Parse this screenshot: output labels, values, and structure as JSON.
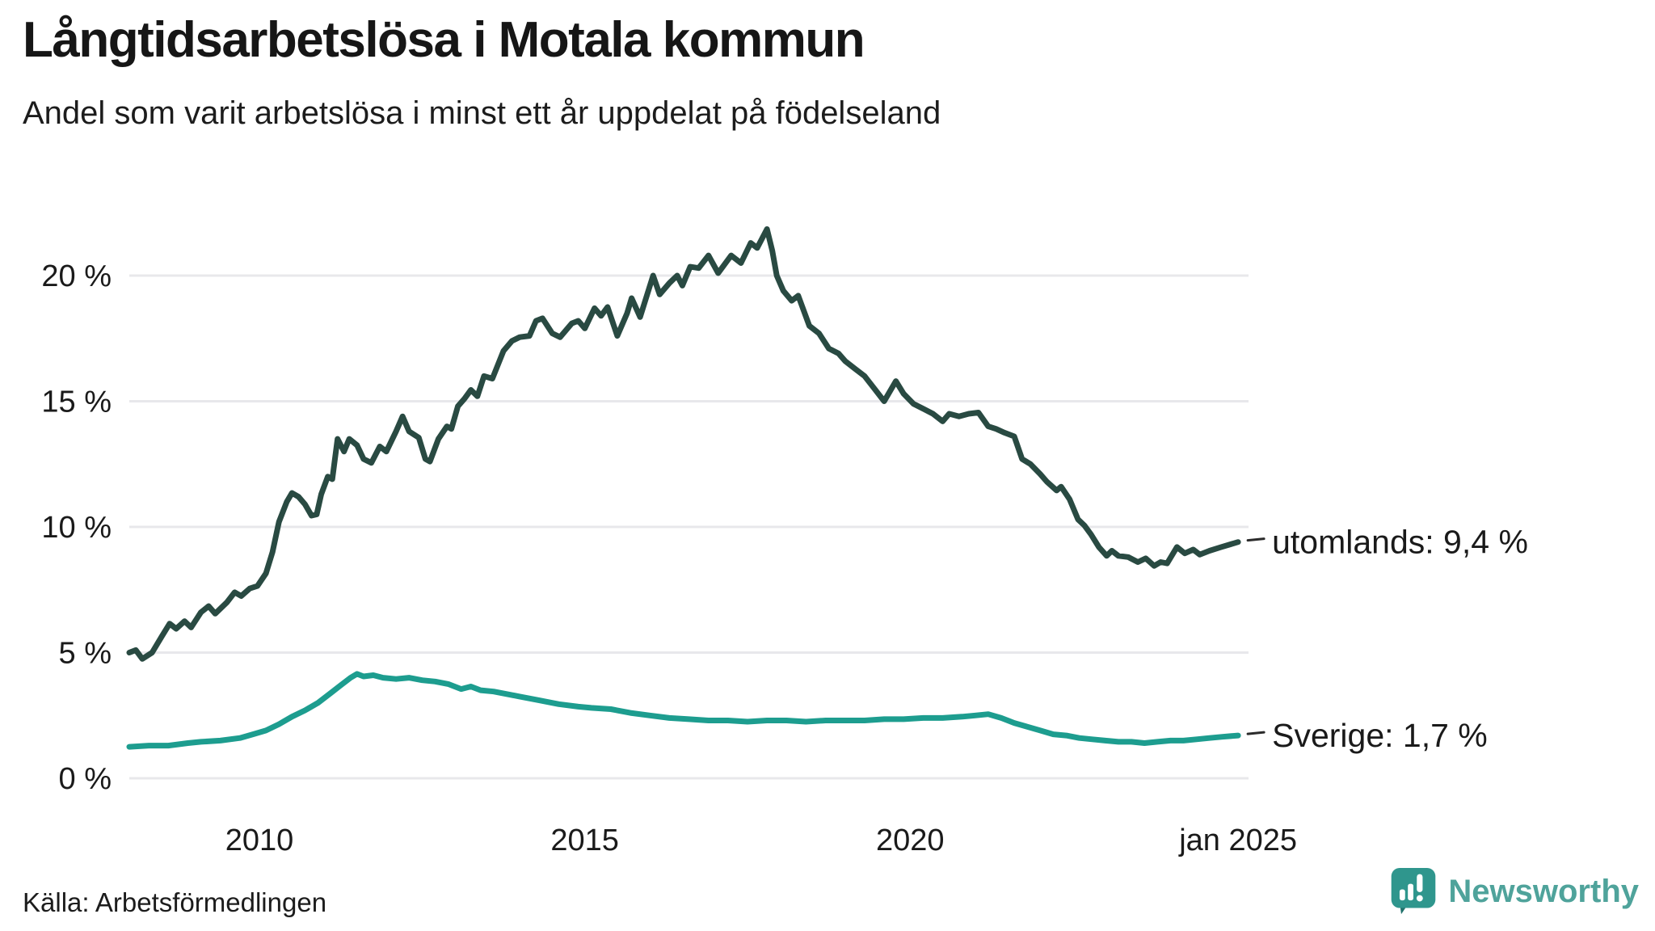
{
  "header": {
    "title": "Långtidsarbetslösa i Motala kommun",
    "subtitle": "Andel som varit arbetslösa i minst ett år uppdelat på födelseland"
  },
  "footer": {
    "source": "Källa: Arbetsförmedlingen",
    "brand": "Newsworthy"
  },
  "colors": {
    "utomlands_line": "#294A42",
    "sverige_line": "#1D9D8F",
    "gridline": "#E8E8EB",
    "axis_text": "#1A1A1A",
    "tick_dash": "#2B2B2B",
    "brand_icon": "#2F968D",
    "brand_icon_dark": "#20716B",
    "brand_text": "#4FA39B"
  },
  "chart_data": {
    "type": "line",
    "title": "Långtidsarbetslösa i Motala kommun",
    "subtitle": "Andel som varit arbetslösa i minst ett år uppdelat på födelseland",
    "source": "Källa: Arbetsförmedlingen",
    "grid": "horizontal-only",
    "legend_position": "end-of-line-labels-right",
    "xlim": [
      2008.0,
      2025.2
    ],
    "ylim": [
      0,
      22.5
    ],
    "yticks": [
      0,
      5,
      10,
      15,
      20
    ],
    "ytick_labels": [
      "0 %",
      "5 %",
      "10 %",
      "15 %",
      "20 %"
    ],
    "xticks": [
      2010,
      2015,
      2020,
      2025.04
    ],
    "xtick_labels": [
      "2010",
      "2015",
      "2020",
      "jan 2025"
    ],
    "series": [
      {
        "name": "utomlands",
        "end_label": "utomlands: 9,4 %",
        "end_value_text": "9,4 %",
        "color": "#294A42",
        "x": [
          2008.0,
          2008.1,
          2008.2,
          2008.35,
          2008.5,
          2008.62,
          2008.72,
          2008.85,
          2008.95,
          2009.1,
          2009.22,
          2009.32,
          2009.5,
          2009.62,
          2009.72,
          2009.85,
          2009.97,
          2010.1,
          2010.2,
          2010.3,
          2010.42,
          2010.5,
          2010.6,
          2010.7,
          2010.8,
          2010.88,
          2010.95,
          2011.05,
          2011.12,
          2011.2,
          2011.3,
          2011.38,
          2011.5,
          2011.6,
          2011.72,
          2011.85,
          2011.95,
          2012.1,
          2012.2,
          2012.3,
          2012.45,
          2012.55,
          2012.62,
          2012.75,
          2012.88,
          2012.95,
          2013.05,
          2013.15,
          2013.25,
          2013.35,
          2013.45,
          2013.58,
          2013.75,
          2013.88,
          2014.0,
          2014.15,
          2014.25,
          2014.35,
          2014.5,
          2014.62,
          2014.8,
          2014.9,
          2015.0,
          2015.15,
          2015.25,
          2015.35,
          2015.5,
          2015.65,
          2015.72,
          2015.85,
          2016.05,
          2016.15,
          2016.3,
          2016.42,
          2016.5,
          2016.62,
          2016.75,
          2016.9,
          2017.05,
          2017.25,
          2017.4,
          2017.55,
          2017.65,
          2017.8,
          2017.88,
          2017.95,
          2018.05,
          2018.18,
          2018.28,
          2018.45,
          2018.6,
          2018.75,
          2018.9,
          2019.0,
          2019.15,
          2019.3,
          2019.45,
          2019.6,
          2019.78,
          2019.9,
          2020.05,
          2020.2,
          2020.35,
          2020.5,
          2020.6,
          2020.75,
          2020.9,
          2021.05,
          2021.2,
          2021.32,
          2021.45,
          2021.6,
          2021.72,
          2021.85,
          2022.0,
          2022.1,
          2022.25,
          2022.32,
          2022.45,
          2022.58,
          2022.68,
          2022.78,
          2022.9,
          2023.02,
          2023.1,
          2023.2,
          2023.35,
          2023.5,
          2023.62,
          2023.75,
          2023.85,
          2023.95,
          2024.1,
          2024.22,
          2024.35,
          2024.45,
          2024.6,
          2024.78,
          2025.04
        ],
        "values": [
          5.0,
          5.1,
          4.75,
          5.0,
          5.65,
          6.15,
          5.95,
          6.25,
          6.0,
          6.6,
          6.85,
          6.55,
          7.0,
          7.4,
          7.25,
          7.55,
          7.65,
          8.15,
          9.0,
          10.2,
          11.0,
          11.35,
          11.2,
          10.9,
          10.45,
          10.5,
          11.3,
          12.0,
          11.9,
          13.5,
          13.0,
          13.5,
          13.25,
          12.7,
          12.55,
          13.2,
          13.0,
          13.8,
          14.4,
          13.8,
          13.55,
          12.7,
          12.6,
          13.5,
          14.0,
          13.9,
          14.8,
          15.1,
          15.45,
          15.2,
          16.0,
          15.9,
          17.0,
          17.4,
          17.55,
          17.6,
          18.2,
          18.3,
          17.7,
          17.55,
          18.1,
          18.2,
          17.9,
          18.7,
          18.4,
          18.75,
          17.6,
          18.5,
          19.1,
          18.35,
          20.0,
          19.25,
          19.7,
          20.0,
          19.6,
          20.35,
          20.3,
          20.8,
          20.1,
          20.8,
          20.5,
          21.3,
          21.1,
          21.85,
          21.0,
          20.0,
          19.4,
          19.0,
          19.2,
          18.0,
          17.7,
          17.1,
          16.9,
          16.6,
          16.3,
          16.0,
          15.5,
          15.0,
          15.8,
          15.3,
          14.9,
          14.7,
          14.5,
          14.2,
          14.5,
          14.4,
          14.5,
          14.55,
          14.0,
          13.9,
          13.75,
          13.6,
          12.7,
          12.5,
          12.1,
          11.8,
          11.45,
          11.6,
          11.1,
          10.3,
          10.05,
          9.7,
          9.2,
          8.85,
          9.05,
          8.85,
          8.8,
          8.6,
          8.75,
          8.45,
          8.6,
          8.55,
          9.2,
          8.95,
          9.1,
          8.9,
          9.05,
          9.2,
          9.4
        ]
      },
      {
        "name": "Sverige",
        "end_label": "Sverige: 1,7 %",
        "end_value_text": "1,7 %",
        "color": "#1D9D8F",
        "x": [
          2008.0,
          2008.3,
          2008.6,
          2008.9,
          2009.1,
          2009.4,
          2009.7,
          2009.9,
          2010.1,
          2010.3,
          2010.5,
          2010.7,
          2010.9,
          2011.1,
          2011.25,
          2011.4,
          2011.5,
          2011.6,
          2011.75,
          2011.9,
          2012.1,
          2012.3,
          2012.5,
          2012.7,
          2012.9,
          2013.1,
          2013.25,
          2013.4,
          2013.6,
          2013.8,
          2014.0,
          2014.3,
          2014.6,
          2014.9,
          2015.1,
          2015.4,
          2015.7,
          2016.0,
          2016.3,
          2016.6,
          2016.9,
          2017.2,
          2017.5,
          2017.8,
          2018.1,
          2018.4,
          2018.7,
          2019.0,
          2019.3,
          2019.6,
          2019.9,
          2020.2,
          2020.5,
          2020.8,
          2021.0,
          2021.2,
          2021.4,
          2021.6,
          2021.8,
          2022.0,
          2022.2,
          2022.4,
          2022.6,
          2022.8,
          2023.0,
          2023.2,
          2023.4,
          2023.6,
          2023.8,
          2024.0,
          2024.2,
          2024.4,
          2024.6,
          2024.8,
          2025.04
        ],
        "values": [
          1.25,
          1.3,
          1.3,
          1.4,
          1.45,
          1.5,
          1.6,
          1.75,
          1.9,
          2.15,
          2.45,
          2.7,
          3.0,
          3.4,
          3.7,
          4.0,
          4.15,
          4.05,
          4.1,
          4.0,
          3.95,
          4.0,
          3.9,
          3.85,
          3.75,
          3.55,
          3.65,
          3.5,
          3.45,
          3.35,
          3.25,
          3.1,
          2.95,
          2.85,
          2.8,
          2.75,
          2.6,
          2.5,
          2.4,
          2.35,
          2.3,
          2.3,
          2.25,
          2.3,
          2.3,
          2.25,
          2.3,
          2.3,
          2.3,
          2.35,
          2.35,
          2.4,
          2.4,
          2.45,
          2.5,
          2.55,
          2.4,
          2.2,
          2.05,
          1.9,
          1.75,
          1.7,
          1.6,
          1.55,
          1.5,
          1.45,
          1.45,
          1.4,
          1.45,
          1.5,
          1.5,
          1.55,
          1.6,
          1.65,
          1.7
        ]
      }
    ]
  }
}
